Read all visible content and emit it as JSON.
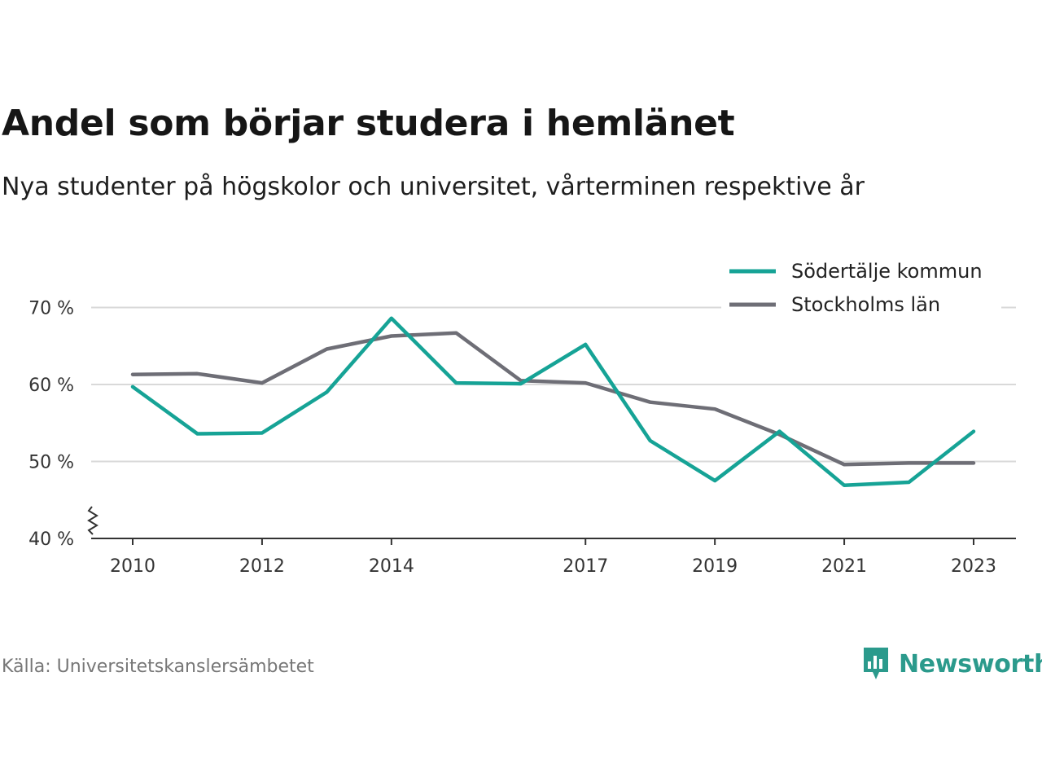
{
  "header": {
    "title": "Andel som börjar studera i hemlänet",
    "subtitle": "Nya studenter på högskolor och universitet, vårterminen respektive år"
  },
  "footer": {
    "source": "Källa: Universitetskanslersämbetet",
    "brand": "Newsworthy"
  },
  "colors": {
    "sodertalje": "#16a396",
    "stockholm": "#6e6e76",
    "grid": "#d9d9d9",
    "axis": "#333333",
    "brand": "#2b9a8c"
  },
  "chart_data": {
    "type": "line",
    "title": "Andel som börjar studera i hemlänet",
    "x": [
      2010,
      2011,
      2012,
      2013,
      2014,
      2015,
      2016,
      2017,
      2018,
      2019,
      2020,
      2021,
      2022,
      2023
    ],
    "x_ticks": [
      "2010",
      "2012",
      "2014",
      "2017",
      "2019",
      "2021",
      "2023"
    ],
    "y_ticks": [
      "40 %",
      "50 %",
      "60 %",
      "70 %"
    ],
    "ylim": [
      40,
      72
    ],
    "y_axis_break": true,
    "grid": true,
    "legend_position": "top-right",
    "series": [
      {
        "name": "Södertälje kommun",
        "color": "#16a396",
        "values": [
          59.7,
          53.6,
          53.7,
          59.0,
          68.6,
          60.2,
          60.1,
          65.2,
          52.7,
          47.5,
          53.9,
          46.9,
          47.3,
          53.9
        ]
      },
      {
        "name": "Stockholms län",
        "color": "#6e6e76",
        "values": [
          61.3,
          61.4,
          60.2,
          64.6,
          66.3,
          66.7,
          60.5,
          60.2,
          57.7,
          56.8,
          53.5,
          49.6,
          49.8,
          49.8
        ]
      }
    ]
  }
}
